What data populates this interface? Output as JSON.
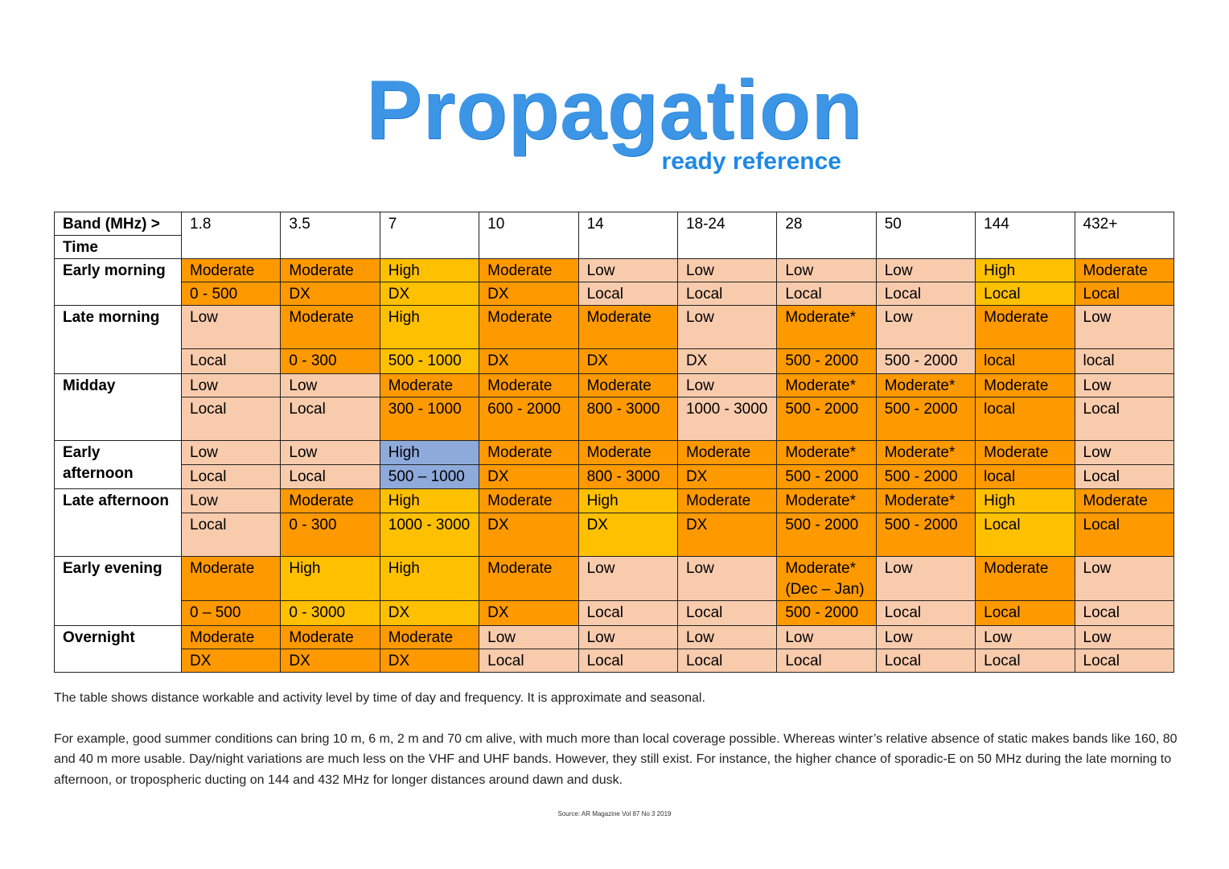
{
  "header": {
    "title": "Propagation",
    "subtitle": "ready reference"
  },
  "table": {
    "band_label": "Band (MHz) >",
    "time_label": "Time",
    "bands": [
      "1.8",
      "3.5",
      "7",
      "10",
      "14",
      "18-24",
      "28",
      "50",
      "144",
      "432+"
    ],
    "rows": [
      {
        "time": "Early morning",
        "levels": [
          "Moderate",
          "Moderate",
          "High",
          "Moderate",
          "Low",
          "Low",
          "Low",
          "Low",
          "High",
          "Moderate"
        ],
        "distances": [
          "0 - 500",
          "DX",
          "DX",
          "DX",
          "Local",
          "Local",
          "Local",
          "Local",
          "Local",
          "Local"
        ],
        "colors": [
          "#ff9900",
          "#ff9900",
          "#ffc000",
          "#ff9900",
          "#f8cbad",
          "#f8cbad",
          "#f8cbad",
          "#f8cbad",
          "#ffc000",
          "#ff9900"
        ]
      },
      {
        "time": "Late morning",
        "levels": [
          "Low",
          "Moderate",
          "High",
          "Moderate",
          "Moderate",
          "Low",
          "Moderate*",
          "Low",
          "Moderate",
          "Low"
        ],
        "distances": [
          "Local",
          "0 - 300",
          "500 - 1000",
          "DX",
          "DX",
          "DX",
          "500 - 2000",
          "500 - 2000",
          "local",
          "local"
        ],
        "colors": [
          "#f8cbad",
          "#ff9900",
          "#ffc000",
          "#ff9900",
          "#ff9900",
          "#f8cbad",
          "#ff9900",
          "#f8cbad",
          "#ff9900",
          "#f8cbad"
        ]
      },
      {
        "time": "Midday",
        "levels": [
          "Low",
          "Low",
          "Moderate",
          "Moderate",
          "Moderate",
          "Low",
          "Moderate*",
          "Moderate*",
          "Moderate",
          "Low"
        ],
        "distances": [
          "Local",
          "Local",
          "300 - 1000",
          "600 - 2000",
          "800 - 3000",
          "1000 - 3000",
          "500 - 2000",
          "500 - 2000",
          "local",
          "Local"
        ],
        "colors": [
          "#f8cbad",
          "#f8cbad",
          "#ff9900",
          "#ff9900",
          "#ff9900",
          "#f8cbad",
          "#ff9900",
          "#ff9900",
          "#ff9900",
          "#f8cbad"
        ]
      },
      {
        "time": "Early afternoon",
        "levels": [
          "Low",
          "Low",
          "High",
          "Moderate",
          "Moderate",
          "Moderate",
          "Moderate*",
          "Moderate*",
          "Moderate",
          "Low"
        ],
        "distances": [
          "Local",
          "Local",
          "500 – 1000",
          "DX",
          "800 - 3000",
          "DX",
          "500 - 2000",
          "500 - 2000",
          "local",
          "Local"
        ],
        "colors": [
          "#f8cbad",
          "#f8cbad",
          "#8eaadb",
          "#ff9900",
          "#ff9900",
          "#ff9900",
          "#ff9900",
          "#ff9900",
          "#ff9900",
          "#f8cbad"
        ]
      },
      {
        "time": "Late afternoon",
        "levels": [
          "Low",
          "Moderate",
          "High",
          "Moderate",
          "High",
          "Moderate",
          "Moderate*",
          "Moderate*",
          "High",
          "Moderate"
        ],
        "distances": [
          "Local",
          "0 - 300",
          "1000 - 3000",
          "DX",
          "DX",
          "DX",
          "500 - 2000",
          "500 - 2000",
          "Local",
          "Local"
        ],
        "colors": [
          "#f8cbad",
          "#ff9900",
          "#ffc000",
          "#ff9900",
          "#ffc000",
          "#ff9900",
          "#ff9900",
          "#ff9900",
          "#ffc000",
          "#ff9900"
        ]
      },
      {
        "time": "Early evening",
        "levels": [
          "Moderate",
          "High",
          "High",
          "Moderate",
          "Low",
          "Low",
          "Moderate* (Dec – Jan)",
          "Low",
          "Moderate",
          "Low"
        ],
        "distances": [
          "0 – 500",
          "0 - 3000",
          "DX",
          "DX",
          "Local",
          "Local",
          "500 - 2000",
          "Local",
          "Local",
          "Local"
        ],
        "colors": [
          "#ff9900",
          "#ffc000",
          "#ffc000",
          "#ff9900",
          "#f8cbad",
          "#f8cbad",
          "#ff9900",
          "#f8cbad",
          "#ff9900",
          "#f8cbad"
        ]
      },
      {
        "time": "Overnight",
        "levels": [
          "Moderate",
          "Moderate",
          "Moderate",
          "Low",
          "Low",
          "Low",
          "Low",
          "Low",
          "Low",
          "Low"
        ],
        "distances": [
          "DX",
          "DX",
          "DX",
          "Local",
          "Local",
          "Local",
          "Local",
          "Local",
          "Local",
          "Local"
        ],
        "colors": [
          "#ff9900",
          "#ff9900",
          "#ff9900",
          "#f8cbad",
          "#f8cbad",
          "#f8cbad",
          "#f8cbad",
          "#f8cbad",
          "#f8cbad",
          "#f8cbad"
        ]
      }
    ]
  },
  "notes": [
    "The table shows distance workable and activity level by time of day and frequency.  It is approximate and seasonal.",
    "For example, good summer conditions can bring 10 m, 6 m, 2 m and 70 cm alive, with much more than local coverage possible. Whereas winter’s relative absence of static makes bands like 160, 80 and 40 m more usable. Day/night variations are much less on the VHF and UHF bands. However, they still exist. For instance, the higher chance of sporadic-E on 50 MHz during the late morning to afternoon, or tropospheric ducting on 144 and 432 MHz for longer distances around dawn and dusk."
  ],
  "source": "Source: AR Magazine Vol 87 No 3 2019"
}
